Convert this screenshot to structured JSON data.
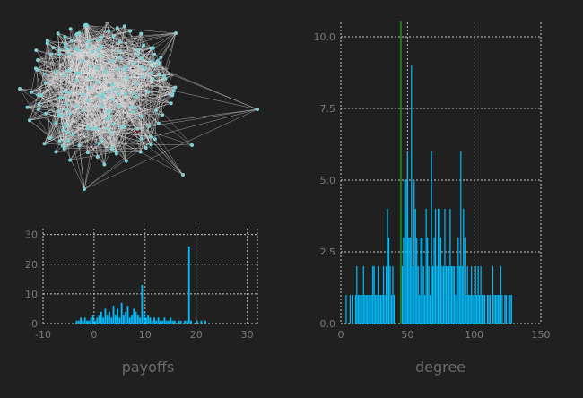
{
  "chart_data": [
    {
      "type": "network",
      "nodes": 200,
      "node_color": "#7fd1d6",
      "edge_color": "#d8d8d8",
      "highlight_colors": [
        "#8a8a8a",
        "#8b1010"
      ]
    },
    {
      "type": "bar",
      "xlabel": "payoffs",
      "ylabel": "",
      "xlim": [
        -10,
        32
      ],
      "ylim": [
        0,
        32
      ],
      "xticks": [
        "-10",
        "0",
        "10",
        "20",
        "30"
      ],
      "yticks": [
        "0",
        "10",
        "20",
        "30"
      ],
      "bar_color": "#00bfff",
      "grid": true,
      "x": [
        -3.4,
        -3,
        -2.6,
        -2.2,
        -1.8,
        -1.4,
        -1,
        -0.6,
        -0.2,
        0.2,
        0.6,
        1,
        1.4,
        1.8,
        2.2,
        2.6,
        3,
        3.4,
        3.8,
        4.2,
        4.6,
        5,
        5.4,
        5.8,
        6.2,
        6.6,
        7,
        7.4,
        7.8,
        8.2,
        8.6,
        9,
        9.4,
        9.8,
        10.2,
        10.6,
        11,
        11.4,
        11.8,
        12.2,
        12.6,
        13,
        13.4,
        13.8,
        14.2,
        14.6,
        15,
        15.4,
        15.8,
        16.2,
        16.6,
        17,
        17.4,
        17.8,
        18.2,
        18.6,
        19,
        19.4,
        19.8,
        20.2,
        20.6,
        21,
        21.4,
        21.8
      ],
      "values": [
        1,
        1,
        2,
        1,
        2,
        1,
        1,
        2,
        3,
        1,
        2,
        3,
        4,
        2,
        5,
        3,
        4,
        2,
        6,
        3,
        5,
        2,
        7,
        3,
        4,
        6,
        2,
        3,
        5,
        4,
        3,
        2,
        13,
        4,
        2,
        3,
        2,
        1,
        2,
        1,
        2,
        1,
        1,
        2,
        1,
        1,
        2,
        1,
        1,
        0,
        1,
        1,
        0,
        1,
        1,
        26,
        1,
        0,
        0,
        1,
        0,
        1,
        0,
        1
      ]
    },
    {
      "type": "bar",
      "xlabel": "degree",
      "ylabel": "",
      "xlim": [
        0,
        150
      ],
      "ylim": [
        0,
        10.5
      ],
      "xticks": [
        "0",
        "50",
        "100",
        "150"
      ],
      "yticks": [
        "0.0",
        "2.5",
        "5.0",
        "7.5",
        "10.0"
      ],
      "bar_color": "#00bfff",
      "vline_x": 45,
      "vline_color": "#1e7a1e",
      "grid": true,
      "x": [
        4,
        7,
        9,
        11,
        12,
        13,
        14,
        15,
        16,
        17,
        18,
        19,
        20,
        21,
        22,
        23,
        24,
        25,
        26,
        27,
        28,
        29,
        30,
        31,
        32,
        33,
        34,
        35,
        36,
        37,
        38,
        39,
        40,
        46,
        47,
        48,
        49,
        50,
        51,
        52,
        53,
        54,
        55,
        56,
        57,
        58,
        59,
        60,
        61,
        62,
        63,
        64,
        65,
        66,
        67,
        68,
        69,
        70,
        71,
        72,
        73,
        74,
        75,
        76,
        77,
        78,
        79,
        80,
        81,
        82,
        83,
        84,
        85,
        86,
        87,
        88,
        89,
        90,
        91,
        92,
        93,
        94,
        95,
        96,
        97,
        98,
        99,
        100,
        101,
        102,
        103,
        104,
        105,
        106,
        107,
        108,
        109,
        110,
        111,
        112,
        113,
        114,
        115,
        116,
        117,
        118,
        119,
        120,
        121,
        122,
        123,
        124,
        125,
        126,
        127,
        128
      ],
      "values": [
        1,
        1,
        1,
        1,
        2,
        1,
        1,
        1,
        1,
        2,
        1,
        1,
        1,
        1,
        1,
        1,
        2,
        2,
        1,
        1,
        2,
        1,
        1,
        1,
        2,
        1,
        2,
        4,
        3,
        2,
        1,
        2,
        1,
        2,
        3,
        5,
        5,
        6,
        3,
        3,
        9,
        2,
        5,
        4,
        3,
        2,
        1,
        3,
        3,
        2,
        1,
        4,
        3,
        2,
        1,
        6,
        2,
        3,
        4,
        2,
        4,
        4,
        3,
        2,
        2,
        4,
        2,
        2,
        2,
        4,
        2,
        2,
        2,
        1,
        2,
        3,
        2,
        6,
        2,
        4,
        3,
        1,
        2,
        1,
        1,
        2,
        1,
        1,
        2,
        1,
        2,
        1,
        2,
        1,
        1,
        1,
        0,
        1,
        1,
        1,
        0,
        2,
        1,
        1,
        1,
        1,
        1,
        2,
        1,
        0,
        1,
        1,
        0,
        1,
        1,
        1
      ]
    }
  ]
}
